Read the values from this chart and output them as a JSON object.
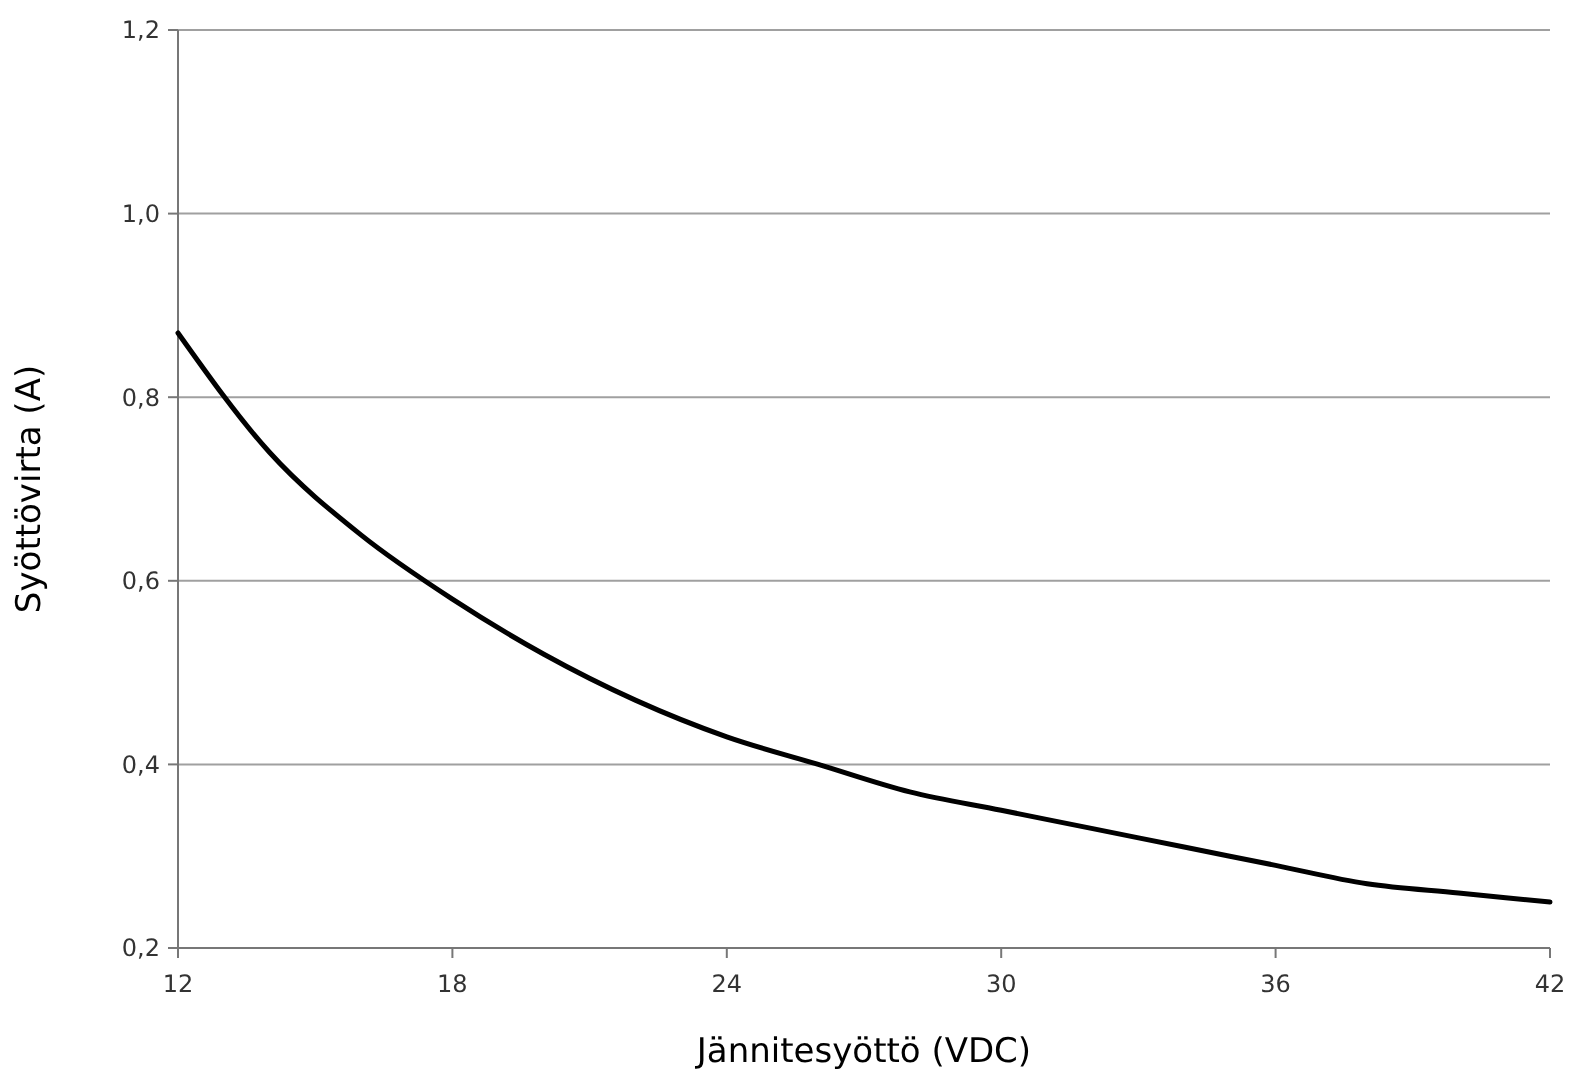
{
  "chart_data": {
    "type": "line",
    "xlabel": "Jännitesyöttö (VDC)",
    "ylabel": "Syöttövirta (A)",
    "x": [
      12,
      14,
      16,
      18,
      20,
      22,
      24,
      26,
      28,
      30,
      32,
      34,
      36,
      38,
      40,
      42
    ],
    "series": [
      {
        "color": "#000000",
        "values": [
          0.87,
          0.74,
          0.65,
          0.58,
          0.52,
          0.47,
          0.43,
          0.4,
          0.37,
          0.35,
          0.33,
          0.31,
          0.29,
          0.27,
          0.26,
          0.25
        ]
      }
    ],
    "xlim": [
      12,
      42
    ],
    "xticks": [
      12,
      18,
      24,
      30,
      36,
      42
    ],
    "ylim": [
      0.2,
      1.2
    ],
    "yticks": [
      {
        "value": 0.2,
        "label": "0,2"
      },
      {
        "value": 0.4,
        "label": "0,4"
      },
      {
        "value": 0.6,
        "label": "0,6"
      },
      {
        "value": 0.8,
        "label": "0,8"
      },
      {
        "value": 1.0,
        "label": "1,0"
      },
      {
        "value": 1.2,
        "label": "1,2"
      }
    ],
    "grid": "y",
    "marker": "none",
    "line_style": "solid"
  }
}
